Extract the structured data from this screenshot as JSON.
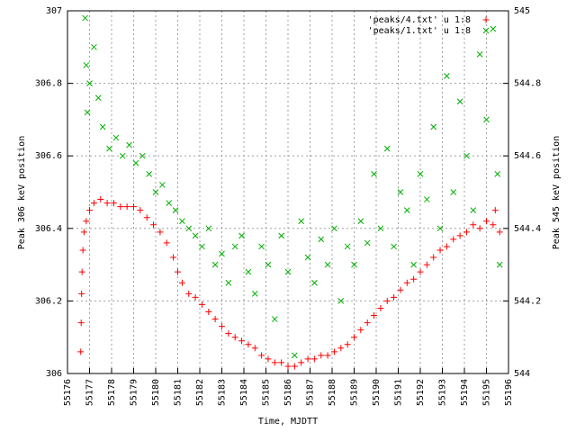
{
  "chart_data": {
    "type": "scatter",
    "xlabel": "Time, MJDTT",
    "ylabel": "Peak 306 keV position",
    "y2label": "Peak 545 keV position",
    "xlim": [
      55176,
      55196
    ],
    "xticks": [
      55176,
      55177,
      55178,
      55179,
      55180,
      55181,
      55182,
      55183,
      55184,
      55185,
      55186,
      55187,
      55188,
      55189,
      55190,
      55191,
      55192,
      55193,
      55194,
      55195,
      55196
    ],
    "ylim": [
      306,
      307
    ],
    "yticks": [
      306,
      306.2,
      306.4,
      306.6,
      306.8,
      307
    ],
    "y2lim": [
      544,
      545
    ],
    "y2ticks": [
      544,
      544.2,
      544.4,
      544.6,
      544.8,
      545
    ],
    "grid": true,
    "legend": "top-right",
    "series": [
      {
        "name": "'peaks/4.txt' u 1:8",
        "color": "#ff0000",
        "x": [
          55176.6,
          55176.62,
          55176.64,
          55176.66,
          55176.7,
          55176.75,
          55176.85,
          55177.0,
          55177.2,
          55177.5,
          55177.8,
          55178.1,
          55178.4,
          55178.7,
          55179.0,
          55179.3,
          55179.6,
          55179.9,
          55180.2,
          55180.5,
          55180.8,
          55181.0,
          55181.2,
          55181.5,
          55181.8,
          55182.1,
          55182.4,
          55182.7,
          55183.0,
          55183.3,
          55183.6,
          55183.9,
          55184.2,
          55184.5,
          55184.8,
          55185.1,
          55185.4,
          55185.7,
          55186.0,
          55186.3,
          55186.6,
          55186.9,
          55187.2,
          55187.5,
          55187.8,
          55188.1,
          55188.4,
          55188.7,
          55189.0,
          55189.3,
          55189.6,
          55189.9,
          55190.2,
          55190.5,
          55190.8,
          55191.1,
          55191.4,
          55191.7,
          55192.0,
          55192.3,
          55192.6,
          55192.9,
          55193.2,
          55193.5,
          55193.8,
          55194.1,
          55194.4,
          55194.7,
          55195.0,
          55195.3,
          55195.6,
          55195.4
        ],
        "values": [
          306.06,
          306.14,
          306.22,
          306.28,
          306.34,
          306.39,
          306.42,
          306.45,
          306.47,
          306.48,
          306.47,
          306.47,
          306.46,
          306.46,
          306.46,
          306.45,
          306.43,
          306.41,
          306.39,
          306.36,
          306.32,
          306.28,
          306.25,
          306.22,
          306.21,
          306.19,
          306.17,
          306.15,
          306.13,
          306.11,
          306.1,
          306.09,
          306.08,
          306.07,
          306.05,
          306.04,
          306.03,
          306.03,
          306.02,
          306.02,
          306.03,
          306.04,
          306.04,
          306.05,
          306.05,
          306.06,
          306.07,
          306.08,
          306.1,
          306.12,
          306.14,
          306.16,
          306.18,
          306.2,
          306.21,
          306.23,
          306.25,
          306.26,
          306.28,
          306.3,
          306.32,
          306.34,
          306.35,
          306.37,
          306.38,
          306.39,
          306.41,
          306.4,
          306.42,
          306.41,
          306.39,
          306.45
        ]
      },
      {
        "name": "'peaks/1.txt' u 1:8",
        "color": "#00b000",
        "axis": "y2",
        "x": [
          55176.8,
          55176.85,
          55176.9,
          55177.0,
          55177.2,
          55177.4,
          55177.6,
          55177.9,
          55178.2,
          55178.5,
          55178.8,
          55179.1,
          55179.4,
          55179.7,
          55180.0,
          55180.3,
          55180.6,
          55180.9,
          55181.2,
          55181.5,
          55181.8,
          55182.1,
          55182.4,
          55182.7,
          55183.0,
          55183.3,
          55183.6,
          55183.9,
          55184.2,
          55184.5,
          55184.8,
          55185.1,
          55185.4,
          55185.7,
          55186.0,
          55186.3,
          55186.6,
          55186.9,
          55187.2,
          55187.5,
          55187.8,
          55188.1,
          55188.4,
          55188.7,
          55189.0,
          55189.3,
          55189.6,
          55189.9,
          55190.2,
          55190.5,
          55190.8,
          55191.1,
          55191.4,
          55191.7,
          55192.0,
          55192.3,
          55192.6,
          55192.9,
          55193.2,
          55193.5,
          55193.8,
          55194.1,
          55194.4,
          55194.7,
          55195.0,
          55195.3,
          55195.6,
          55195.5
        ],
        "values": [
          544.98,
          544.85,
          544.72,
          544.8,
          544.9,
          544.76,
          544.68,
          544.62,
          544.65,
          544.6,
          544.63,
          544.58,
          544.6,
          544.55,
          544.5,
          544.52,
          544.47,
          544.45,
          544.42,
          544.4,
          544.38,
          544.35,
          544.4,
          544.3,
          544.33,
          544.25,
          544.35,
          544.38,
          544.28,
          544.22,
          544.35,
          544.3,
          544.15,
          544.38,
          544.28,
          544.05,
          544.42,
          544.32,
          544.25,
          544.37,
          544.3,
          544.4,
          544.2,
          544.35,
          544.3,
          544.42,
          544.36,
          544.55,
          544.4,
          544.62,
          544.35,
          544.5,
          544.45,
          544.3,
          544.55,
          544.48,
          544.68,
          544.4,
          544.82,
          544.5,
          544.75,
          544.6,
          544.45,
          544.88,
          544.7,
          544.95,
          544.3,
          544.55
        ]
      }
    ]
  }
}
